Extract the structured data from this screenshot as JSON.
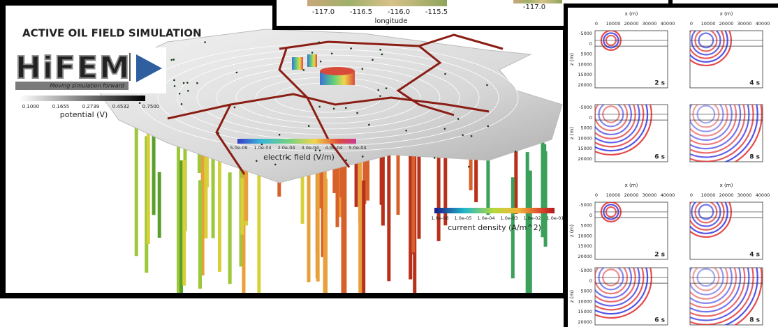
{
  "map_panel": {
    "x_ticks": [
      "-117.0",
      "-116.5",
      "-116.0",
      "-115.5"
    ],
    "x_label": "longitude",
    "inset_tick": "-117.0"
  },
  "main_panel": {
    "title": "ACTIVE OIL FIELD SIMULATION",
    "logo": {
      "name": "HiFEM",
      "tagline": "Moving simulation forward"
    },
    "potential_bar": {
      "ticks": [
        "0.1000",
        "0.1655",
        "0.2739",
        "0.4532",
        "0.7500"
      ],
      "label": "potential (V)"
    },
    "electric_bar": {
      "ticks": [
        "5.0e-09",
        "1.0e-04",
        "2.0e-04",
        "3.0e-04",
        "4.0e-04",
        "5.0e-04"
      ],
      "label": "electric field (V/m)"
    },
    "current_bar": {
      "ticks": [
        "1.0e-06",
        "1.0e-05",
        "1.0e-04",
        "1.0e-03",
        "1.0e-02",
        "1.0e-01"
      ],
      "label": "current density (A/m^2)"
    }
  },
  "wave_panel": {
    "x_label": "x (m)",
    "y_label": "z (m)",
    "x_ticks": [
      "0",
      "10000",
      "20000",
      "30000",
      "40000"
    ],
    "y_ticks": [
      "-5000",
      "0",
      "5000",
      "10000",
      "15000",
      "20000"
    ],
    "times": [
      "2 s",
      "4 s",
      "6 s",
      "8 s"
    ]
  }
}
